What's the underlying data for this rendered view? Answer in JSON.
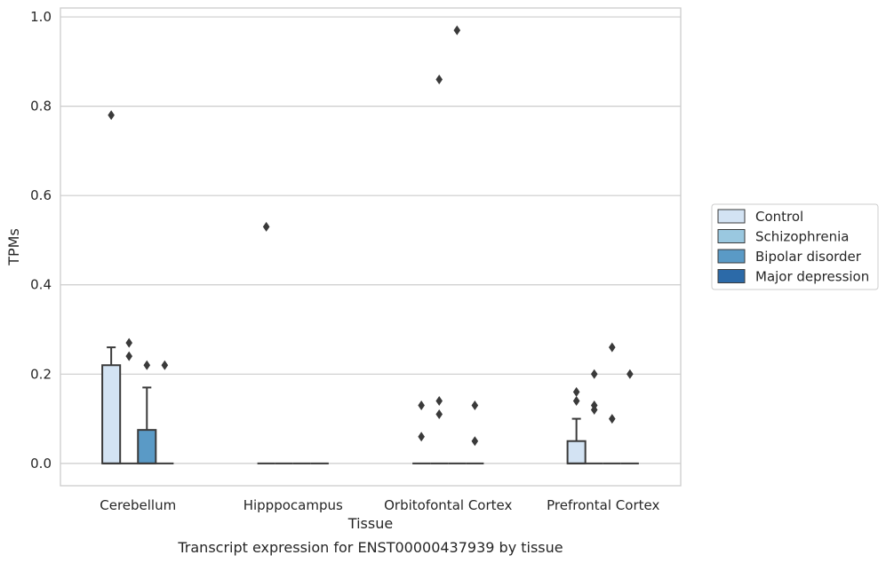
{
  "caption": "Transcript expression for ENST00000437939 by tissue",
  "chart_data": {
    "type": "box",
    "xlabel": "Tissue",
    "ylabel": "TPMs",
    "ylim": [
      -0.05,
      1.02
    ],
    "yticks": [
      0.0,
      0.2,
      0.4,
      0.6,
      0.8,
      1.0
    ],
    "ytick_labels": [
      "0.0",
      "0.2",
      "0.4",
      "0.6",
      "0.8",
      "1.0"
    ],
    "grid": true,
    "legend_placement": "center-right",
    "categories": [
      "Cerebellum",
      "Hipppocampus",
      "Orbitofontal Cortex",
      "Prefrontal Cortex"
    ],
    "series": [
      {
        "name": "Control",
        "color": "#d3e3f3",
        "boxes": [
          {
            "q1": 0.0,
            "median": 0.0,
            "q3": 0.22,
            "whisker_low": 0.0,
            "whisker_high": 0.26,
            "outliers": [
              0.78
            ]
          },
          {
            "q1": 0.0,
            "median": 0.0,
            "q3": 0.0,
            "whisker_low": 0.0,
            "whisker_high": 0.0,
            "outliers": [
              0.53
            ]
          },
          {
            "q1": 0.0,
            "median": 0.0,
            "q3": 0.0,
            "whisker_low": 0.0,
            "whisker_high": 0.0,
            "outliers": [
              0.13,
              0.06
            ]
          },
          {
            "q1": 0.0,
            "median": 0.0,
            "q3": 0.05,
            "whisker_low": 0.0,
            "whisker_high": 0.1,
            "outliers": [
              0.16,
              0.14
            ]
          }
        ]
      },
      {
        "name": "Schizophrenia",
        "color": "#9ac8e0",
        "boxes": [
          {
            "q1": 0.0,
            "median": 0.0,
            "q3": 0.0,
            "whisker_low": 0.0,
            "whisker_high": 0.0,
            "outliers": [
              0.27,
              0.24
            ]
          },
          {
            "q1": 0.0,
            "median": 0.0,
            "q3": 0.0,
            "whisker_low": 0.0,
            "whisker_high": 0.0,
            "outliers": []
          },
          {
            "q1": 0.0,
            "median": 0.0,
            "q3": 0.0,
            "whisker_low": 0.0,
            "whisker_high": 0.0,
            "outliers": [
              0.86,
              0.14,
              0.11
            ]
          },
          {
            "q1": 0.0,
            "median": 0.0,
            "q3": 0.0,
            "whisker_low": 0.0,
            "whisker_high": 0.0,
            "outliers": [
              0.2,
              0.13,
              0.12
            ]
          }
        ]
      },
      {
        "name": "Bipolar disorder",
        "color": "#5a9ac6",
        "boxes": [
          {
            "q1": 0.0,
            "median": 0.0,
            "q3": 0.075,
            "whisker_low": 0.0,
            "whisker_high": 0.17,
            "outliers": [
              0.22
            ]
          },
          {
            "q1": 0.0,
            "median": 0.0,
            "q3": 0.0,
            "whisker_low": 0.0,
            "whisker_high": 0.0,
            "outliers": []
          },
          {
            "q1": 0.0,
            "median": 0.0,
            "q3": 0.0,
            "whisker_low": 0.0,
            "whisker_high": 0.0,
            "outliers": [
              0.97
            ]
          },
          {
            "q1": 0.0,
            "median": 0.0,
            "q3": 0.0,
            "whisker_low": 0.0,
            "whisker_high": 0.0,
            "outliers": [
              0.26,
              0.1
            ]
          }
        ]
      },
      {
        "name": "Major depression",
        "color": "#2c6aa8",
        "boxes": [
          {
            "q1": 0.0,
            "median": 0.0,
            "q3": 0.0,
            "whisker_low": 0.0,
            "whisker_high": 0.0,
            "outliers": [
              0.22
            ]
          },
          {
            "q1": 0.0,
            "median": 0.0,
            "q3": 0.0,
            "whisker_low": 0.0,
            "whisker_high": 0.0,
            "outliers": []
          },
          {
            "q1": 0.0,
            "median": 0.0,
            "q3": 0.0,
            "whisker_low": 0.0,
            "whisker_high": 0.0,
            "outliers": [
              0.13,
              0.05
            ]
          },
          {
            "q1": 0.0,
            "median": 0.0,
            "q3": 0.0,
            "whisker_low": 0.0,
            "whisker_high": 0.0,
            "outliers": [
              0.2
            ]
          }
        ]
      }
    ]
  }
}
